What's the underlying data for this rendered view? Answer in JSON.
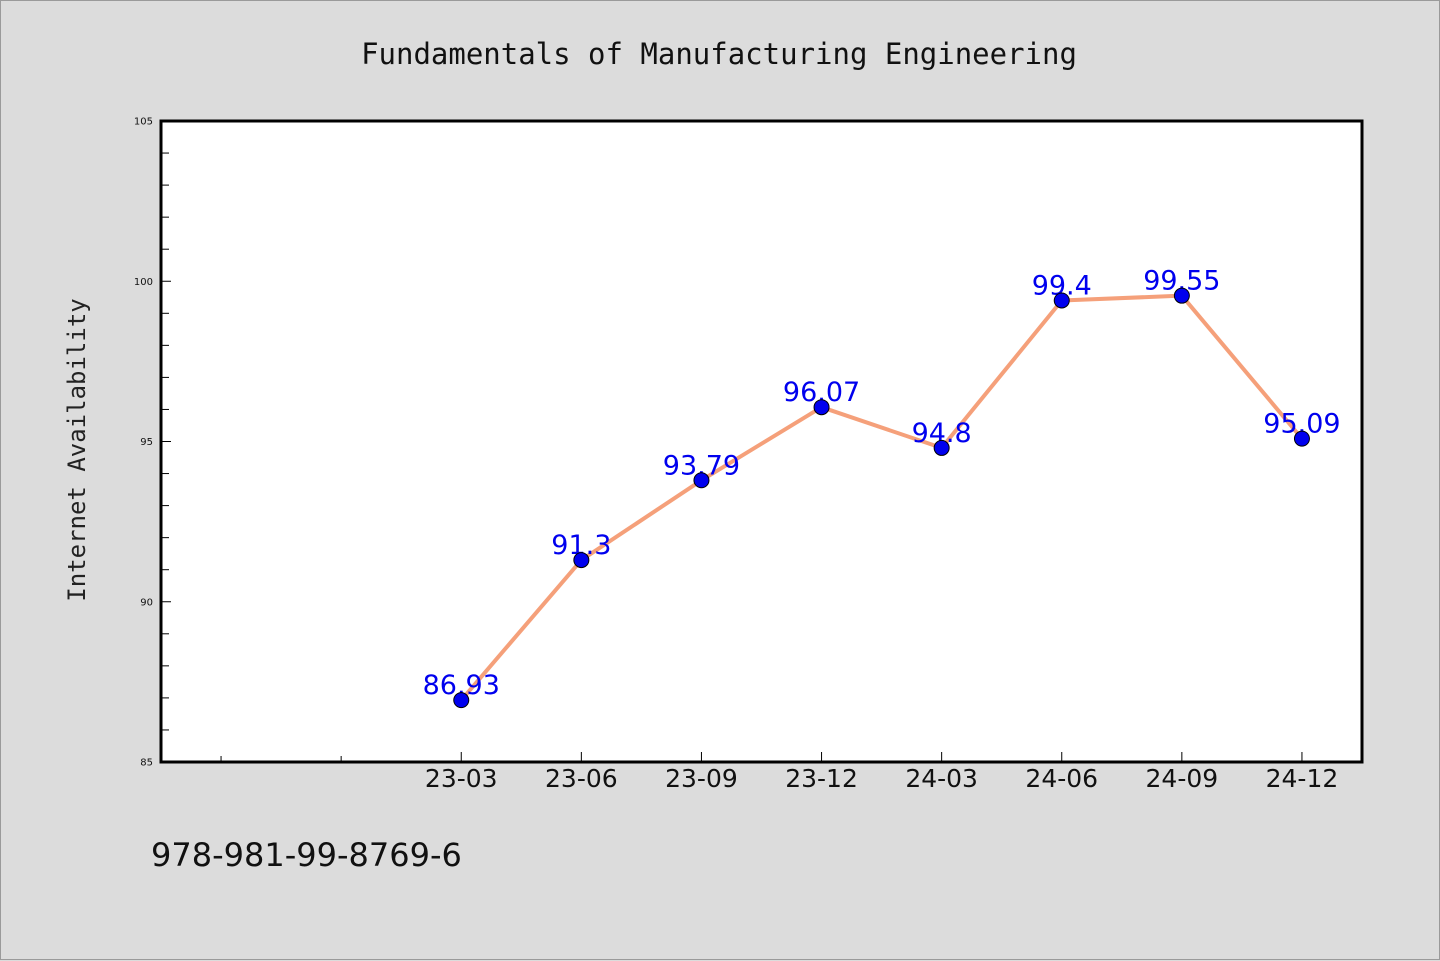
{
  "chart_data": {
    "type": "line",
    "title": "Fundamentals of Manufacturing Engineering",
    "xlabel": "",
    "ylabel": "Internet Availability",
    "categories": [
      "23-03",
      "23-06",
      "23-09",
      "23-12",
      "24-03",
      "24-06",
      "24-09",
      "24-12"
    ],
    "series": [
      {
        "values": [
          86.93,
          91.3,
          93.79,
          96.07,
          94.8,
          99.4,
          99.55,
          95.09
        ]
      }
    ],
    "data_labels": [
      "86.93",
      "91.3",
      "93.79",
      "96.07",
      "94.8",
      "99.4",
      "99.55",
      "95.09"
    ],
    "ylim": [
      85,
      105
    ],
    "yticks": [
      85,
      90,
      95,
      100,
      105
    ],
    "x_slots": 10,
    "x_first_category_slot": 2,
    "grid": false,
    "line_color": "#f5a07a",
    "marker_color": "#0000ee",
    "label_color": "#0000ee"
  },
  "footer": {
    "isbn": "978-981-99-8769-6"
  }
}
